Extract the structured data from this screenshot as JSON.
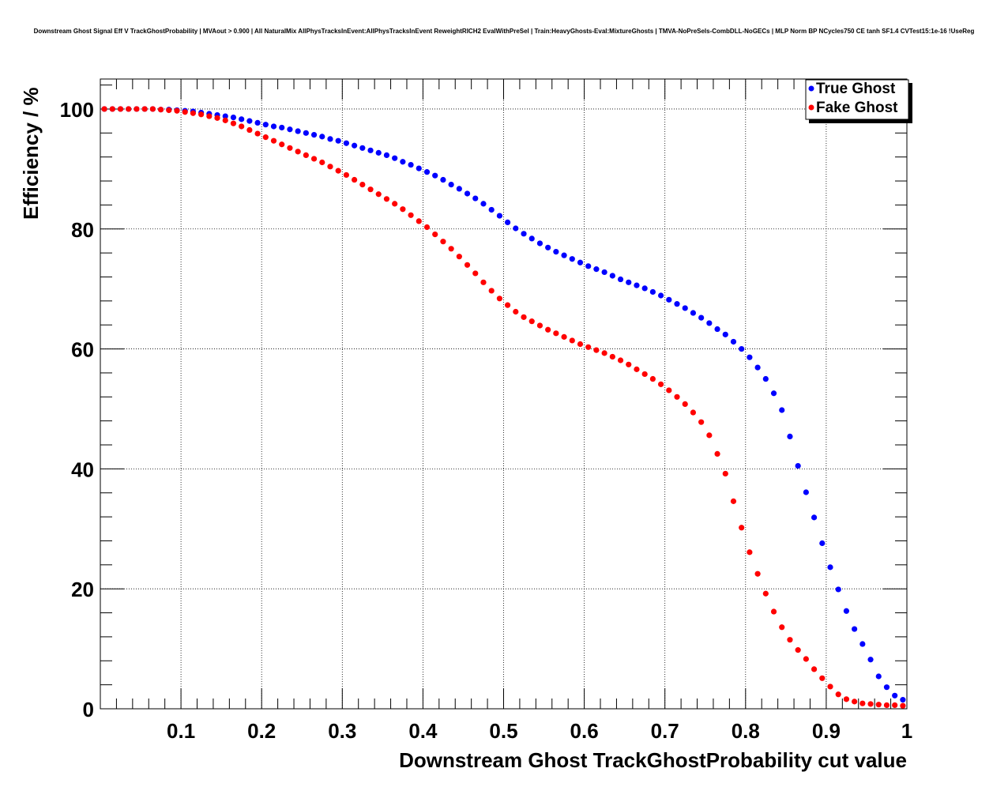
{
  "chart_data": {
    "type": "scatter",
    "title": "Downstream Ghost Signal Eff V TrackGhostProbability | MVAout > 0.900 | All NaturalMix AllPhysTracksInEvent:AllPhysTracksInEvent ReweightRICH2 EvalWithPreSel | Train:HeavyGhosts-Eval:MixtureGhosts | TMVA-NoPreSels-CombDLL-NoGECs | MLP Norm BP NCycles750 CE tanh SF1.4 CVTest15:1e-16 !UseReg",
    "xlabel": "Downstream Ghost TrackGhostProbability cut value",
    "ylabel": "Efficiency / %",
    "xlim": [
      0,
      1
    ],
    "ylim": [
      0,
      105
    ],
    "x_ticks": [
      0.1,
      0.2,
      0.3,
      0.4,
      0.5,
      0.6,
      0.7,
      0.8,
      0.9,
      1.0
    ],
    "x_tick_labels": [
      "0.1",
      "0.2",
      "0.3",
      "0.4",
      "0.5",
      "0.6",
      "0.7",
      "0.8",
      "0.9",
      "1"
    ],
    "y_ticks": [
      0,
      20,
      40,
      60,
      80,
      100
    ],
    "y_tick_labels": [
      "0",
      "20",
      "40",
      "60",
      "80",
      "100"
    ],
    "grid": true,
    "legend_position": "top-right",
    "x": [
      0.005,
      0.015,
      0.025,
      0.035,
      0.045,
      0.055,
      0.065,
      0.075,
      0.085,
      0.095,
      0.105,
      0.115,
      0.125,
      0.135,
      0.145,
      0.155,
      0.165,
      0.175,
      0.185,
      0.195,
      0.205,
      0.215,
      0.225,
      0.235,
      0.245,
      0.255,
      0.265,
      0.275,
      0.285,
      0.295,
      0.305,
      0.315,
      0.325,
      0.335,
      0.345,
      0.355,
      0.365,
      0.375,
      0.385,
      0.395,
      0.405,
      0.415,
      0.425,
      0.435,
      0.445,
      0.455,
      0.465,
      0.475,
      0.485,
      0.495,
      0.505,
      0.515,
      0.525,
      0.535,
      0.545,
      0.555,
      0.565,
      0.575,
      0.585,
      0.595,
      0.605,
      0.615,
      0.625,
      0.635,
      0.645,
      0.655,
      0.665,
      0.675,
      0.685,
      0.695,
      0.705,
      0.715,
      0.725,
      0.735,
      0.745,
      0.755,
      0.765,
      0.775,
      0.785,
      0.795,
      0.805,
      0.815,
      0.825,
      0.835,
      0.845,
      0.855,
      0.865,
      0.875,
      0.885,
      0.895,
      0.905,
      0.915,
      0.925,
      0.935,
      0.945,
      0.955,
      0.965,
      0.975,
      0.985,
      0.995
    ],
    "series": [
      {
        "name": "True Ghost",
        "color": "#0000ff",
        "values": [
          100,
          100,
          100,
          100,
          100,
          100,
          100,
          99.9,
          99.9,
          99.8,
          99.7,
          99.6,
          99.4,
          99.2,
          99.0,
          98.8,
          98.6,
          98.3,
          98.0,
          97.7,
          97.4,
          97.1,
          96.9,
          96.6,
          96.3,
          96.0,
          95.7,
          95.4,
          95.0,
          94.7,
          94.3,
          93.9,
          93.5,
          93.1,
          92.7,
          92.3,
          91.8,
          91.2,
          90.7,
          90.1,
          89.5,
          88.9,
          88.2,
          87.4,
          86.7,
          85.9,
          85.1,
          84.2,
          83.2,
          82.2,
          81.1,
          80.1,
          79.2,
          78.4,
          77.6,
          76.9,
          76.2,
          75.6,
          75.0,
          74.4,
          73.8,
          73.3,
          72.8,
          72.2,
          71.6,
          71.1,
          70.6,
          70.1,
          69.5,
          68.9,
          68.2,
          67.5,
          66.8,
          66.0,
          65.2,
          64.3,
          63.3,
          62.4,
          61.2,
          60.0,
          58.6,
          56.9,
          55.0,
          52.6,
          49.8,
          45.4,
          40.5,
          36.1,
          31.9,
          27.6,
          23.6,
          19.9,
          16.3,
          13.3,
          10.8,
          8.2,
          5.4,
          3.6,
          2.2,
          1.5
        ]
      },
      {
        "name": "Fake Ghost",
        "color": "#ff0000",
        "values": [
          100,
          100,
          100,
          100,
          100,
          100,
          100,
          99.9,
          99.8,
          99.7,
          99.5,
          99.3,
          99.1,
          98.8,
          98.5,
          98.1,
          97.6,
          97.1,
          96.5,
          95.9,
          95.3,
          94.7,
          94.1,
          93.5,
          92.9,
          92.3,
          91.7,
          91.1,
          90.4,
          89.7,
          89.0,
          88.2,
          87.4,
          86.6,
          85.8,
          85.0,
          84.2,
          83.3,
          82.3,
          81.3,
          80.3,
          79.1,
          77.9,
          76.7,
          75.4,
          74.0,
          72.6,
          71.1,
          69.7,
          68.4,
          67.3,
          66.2,
          65.3,
          64.6,
          63.9,
          63.2,
          62.6,
          62.0,
          61.4,
          60.8,
          60.3,
          59.8,
          59.3,
          58.7,
          58.1,
          57.4,
          56.6,
          55.8,
          55.0,
          54.1,
          53.1,
          52.0,
          50.8,
          49.4,
          47.8,
          45.6,
          42.5,
          39.2,
          34.6,
          30.2,
          26.1,
          22.5,
          19.2,
          16.2,
          13.6,
          11.5,
          9.8,
          8.3,
          6.6,
          5.1,
          3.7,
          2.4,
          1.6,
          1.2,
          0.9,
          0.8,
          0.7,
          0.6,
          0.6,
          0.5
        ]
      }
    ]
  }
}
